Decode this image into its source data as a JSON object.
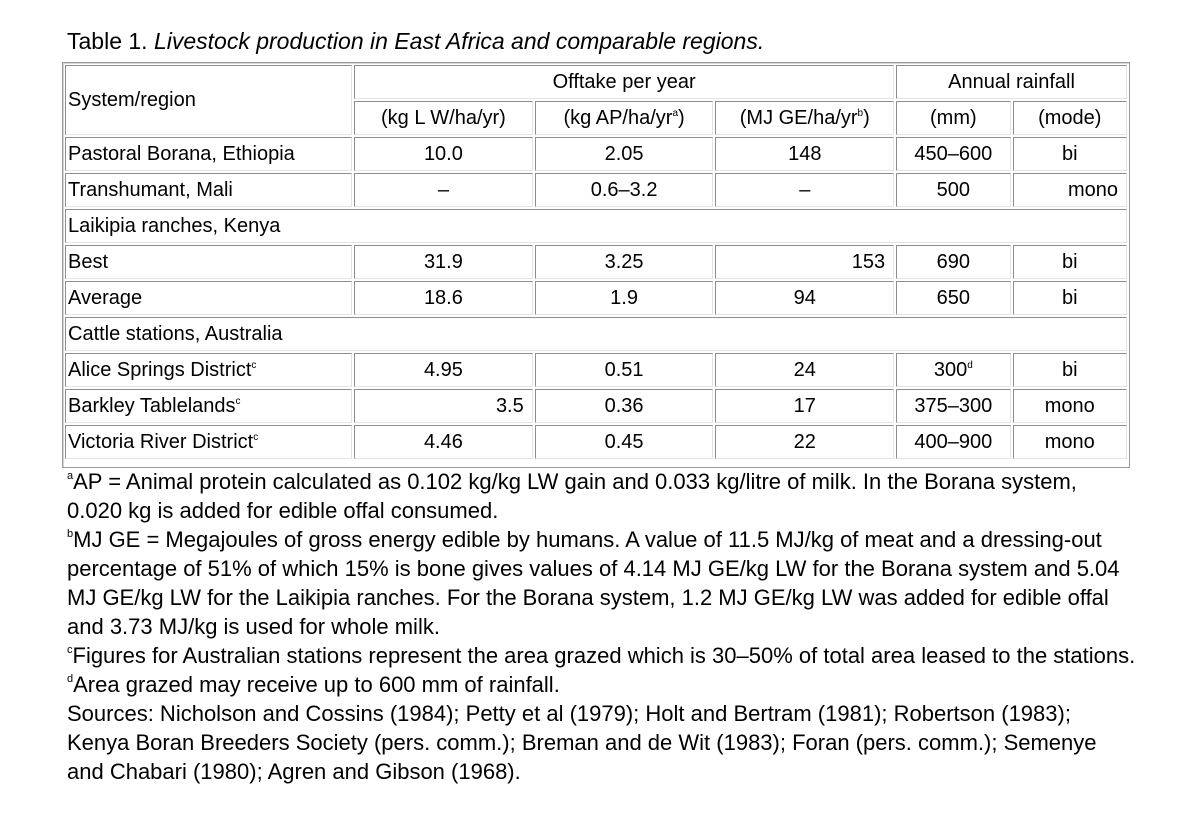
{
  "title": {
    "prefix": "Table 1. ",
    "italic": "Livestock production in East Africa and comparable regions."
  },
  "header": {
    "system": "System/region",
    "offtake": "Offtake per year",
    "rainfall": "Annual rainfall",
    "kg_lw": "(kg L W/ha/yr)",
    "kg_ap": "(kg AP/ha/yr",
    "kg_ap_fn": "a",
    "mj_ge": "(MJ GE/ha/yr",
    "mj_ge_fn": "b",
    "close": ")",
    "mm": "(mm)",
    "mode": "(mode)"
  },
  "rows": {
    "borana": {
      "name": "Pastoral Borana, Ethiopia",
      "lw": "10.0",
      "ap": "2.05",
      "ge": "148",
      "mm": "450–600",
      "mode": "bi"
    },
    "mali": {
      "name": "Transhumant, Mali",
      "lw": "–",
      "ap": "0.6–3.2",
      "ge": "–",
      "mm": "500",
      "mode": "mono"
    },
    "laikipia": {
      "name": "Laikipia ranches, Kenya"
    },
    "best": {
      "name": "Best",
      "lw": "31.9",
      "ap": "3.25",
      "ge": "153",
      "mm": "690",
      "mode": "bi"
    },
    "average": {
      "name": "Average",
      "lw": "18.6",
      "ap": "1.9",
      "ge": "94",
      "mm": "650",
      "mode": "bi"
    },
    "australia": {
      "name": "Cattle stations, Australia"
    },
    "alice": {
      "name": "Alice Springs District",
      "fn": "c",
      "lw": "4.95",
      "ap": "0.51",
      "ge": "24",
      "mm": "300",
      "mm_fn": "d",
      "mode": "bi"
    },
    "barkley": {
      "name": "Barkley Tablelands",
      "fn": "c",
      "lw": "3.5",
      "ap": "0.36",
      "ge": "17",
      "mm": "375–300",
      "mode": "mono"
    },
    "victoria": {
      "name": "Victoria River District",
      "fn": "c",
      "lw": "4.46",
      "ap": "0.45",
      "ge": "22",
      "mm": "400–900",
      "mode": "mono"
    }
  },
  "notes": {
    "a_mark": "a",
    "a": "AP = Animal protein calculated as 0.102 kg/kg LW gain and 0.033 kg/litre of milk. In the Borana system, 0.020 kg is added for edible offal consumed.",
    "b_mark": "b",
    "b": "MJ GE = Megajoules of gross energy edible by humans. A value of 11.5 MJ/kg of meat and a dressing-out percentage of 51% of which 15% is bone gives values of 4.14 MJ GE/kg LW for the Borana system and 5.04 MJ GE/kg LW for the Laikipia ranches. For the Borana system, 1.2 MJ GE/kg LW was added for edible offal and 3.73 MJ/kg is used for whole milk.",
    "c_mark": "c",
    "c": "Figures for Australian stations represent the area grazed which is 30–50% of total area leased to the stations.",
    "d_mark": "d",
    "d": "Area grazed may receive up to 600 mm of rainfall.",
    "sources": "Sources: Nicholson and Cossins (1984); Petty et al (1979); Holt and Bertram (1981); Robertson (1983); Kenya Boran Breeders Society (pers. comm.); Breman and de Wit (1983); Foran (pers. comm.); Semenye and Chabari (1980); Agren and Gibson (1968)."
  }
}
